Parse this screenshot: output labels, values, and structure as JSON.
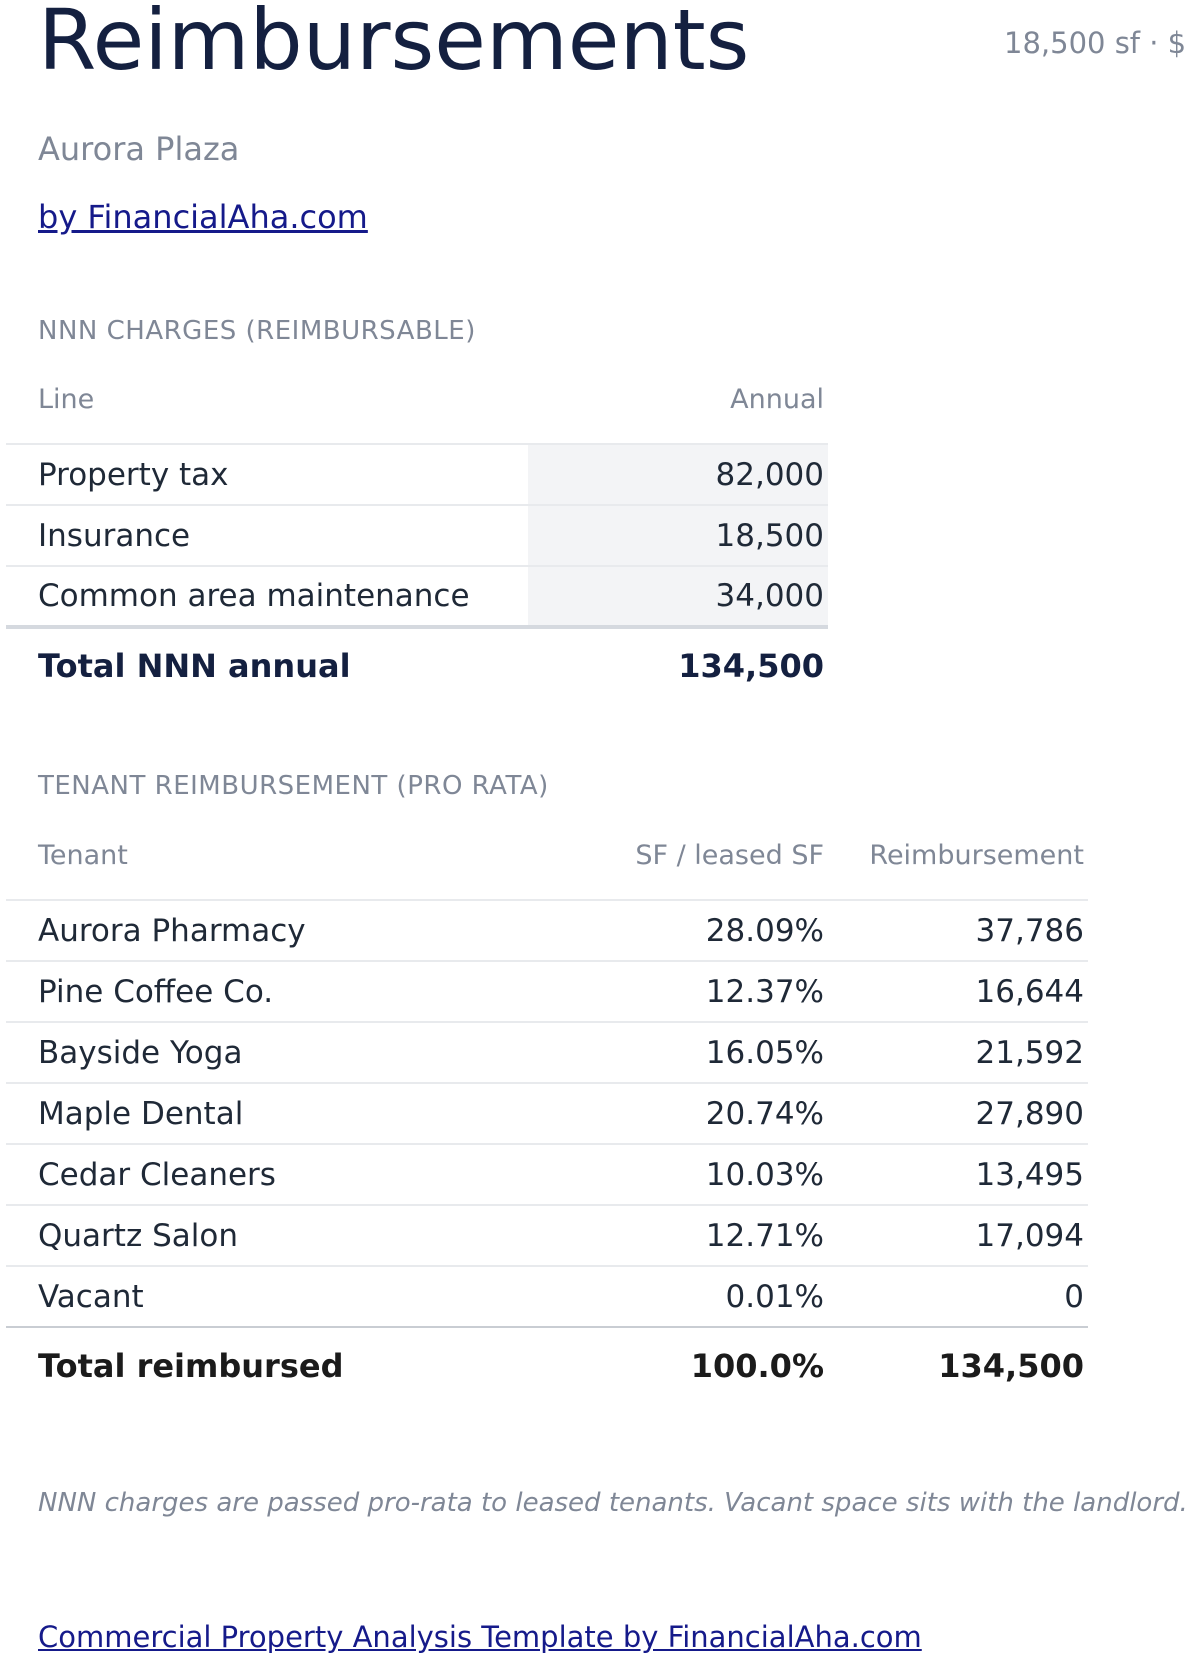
{
  "header": {
    "title": "Reimbursements",
    "meta": "18,500 sf · $",
    "subtitle": "Aurora Plaza",
    "byline": "by FinancialAha.com"
  },
  "nnn": {
    "section_title": "NNN CHARGES (REIMBURSABLE)",
    "columns": [
      "Line",
      "Annual"
    ],
    "rows": [
      {
        "line": "Property tax",
        "annual": "82,000"
      },
      {
        "line": "Insurance",
        "annual": "18,500"
      },
      {
        "line": "Common area maintenance",
        "annual": "34,000"
      }
    ],
    "total_label": "Total NNN annual",
    "total_value": "134,500"
  },
  "tenants": {
    "section_title": "TENANT REIMBURSEMENT (PRO RATA)",
    "columns": [
      "Tenant",
      "SF / leased SF",
      "Reimbursement"
    ],
    "rows": [
      {
        "tenant": "Aurora Pharmacy",
        "share": "28.09%",
        "reimb": "37,786"
      },
      {
        "tenant": "Pine Coffee Co.",
        "share": "12.37%",
        "reimb": "16,644"
      },
      {
        "tenant": "Bayside Yoga",
        "share": "16.05%",
        "reimb": "21,592"
      },
      {
        "tenant": "Maple Dental",
        "share": "20.74%",
        "reimb": "27,890"
      },
      {
        "tenant": "Cedar Cleaners",
        "share": "10.03%",
        "reimb": "13,495"
      },
      {
        "tenant": "Quartz Salon",
        "share": "12.71%",
        "reimb": "17,094"
      },
      {
        "tenant": "Vacant",
        "share": "0.01%",
        "reimb": "0"
      }
    ],
    "total_label": "Total reimbursed",
    "total_share": "100.0%",
    "total_reimb": "134,500"
  },
  "note": "NNN charges are passed pro-rata to leased tenants. Vacant space sits with the landlord.",
  "footer_link": "Commercial Property Analysis Template by FinancialAha.com"
}
